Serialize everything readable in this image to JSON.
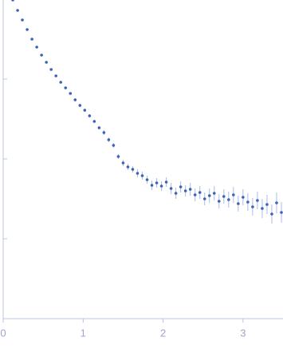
{
  "chart_data": {
    "type": "scatter",
    "x": [
      0.12,
      0.18,
      0.24,
      0.3,
      0.36,
      0.42,
      0.48,
      0.54,
      0.6,
      0.66,
      0.72,
      0.78,
      0.84,
      0.9,
      0.96,
      1.02,
      1.08,
      1.14,
      1.2,
      1.26,
      1.32,
      1.38,
      1.44,
      1.5,
      1.56,
      1.62,
      1.68,
      1.74,
      1.8,
      1.86,
      1.92,
      1.98,
      2.04,
      2.1,
      2.16,
      2.22,
      2.28,
      2.34,
      2.4,
      2.46,
      2.52,
      2.58,
      2.64,
      2.7,
      2.76,
      2.82,
      2.88,
      2.94,
      3.0,
      3.06,
      3.12,
      3.18,
      3.24,
      3.3,
      3.36,
      3.42,
      3.48
    ],
    "values": [
      3.99,
      3.86,
      3.74,
      3.62,
      3.5,
      3.4,
      3.3,
      3.21,
      3.12,
      3.04,
      2.96,
      2.89,
      2.82,
      2.74,
      2.67,
      2.61,
      2.54,
      2.47,
      2.39,
      2.33,
      2.24,
      2.17,
      2.03,
      1.95,
      1.9,
      1.87,
      1.82,
      1.79,
      1.74,
      1.67,
      1.7,
      1.66,
      1.71,
      1.63,
      1.57,
      1.65,
      1.6,
      1.62,
      1.55,
      1.58,
      1.5,
      1.54,
      1.57,
      1.47,
      1.53,
      1.49,
      1.55,
      1.44,
      1.52,
      1.46,
      1.4,
      1.48,
      1.38,
      1.43,
      1.31,
      1.45,
      1.33
    ],
    "errors": [
      0.01,
      0.01,
      0.01,
      0.01,
      0.01,
      0.01,
      0.01,
      0.01,
      0.01,
      0.01,
      0.01,
      0.01,
      0.01,
      0.02,
      0.02,
      0.02,
      0.02,
      0.02,
      0.02,
      0.03,
      0.03,
      0.03,
      0.03,
      0.04,
      0.04,
      0.04,
      0.05,
      0.05,
      0.05,
      0.06,
      0.06,
      0.06,
      0.06,
      0.07,
      0.07,
      0.07,
      0.07,
      0.08,
      0.08,
      0.08,
      0.08,
      0.09,
      0.09,
      0.09,
      0.09,
      0.1,
      0.1,
      0.1,
      0.1,
      0.11,
      0.11,
      0.11,
      0.12,
      0.12,
      0.12,
      0.13,
      0.13
    ],
    "color": "#3a63b8",
    "error_color": "#aabde4",
    "xlim": [
      -0.04,
      3.5
    ],
    "xticks": [
      0,
      1,
      2,
      3
    ],
    "ylim": [
      0,
      4
    ],
    "yticks": [
      1,
      2,
      3
    ]
  }
}
